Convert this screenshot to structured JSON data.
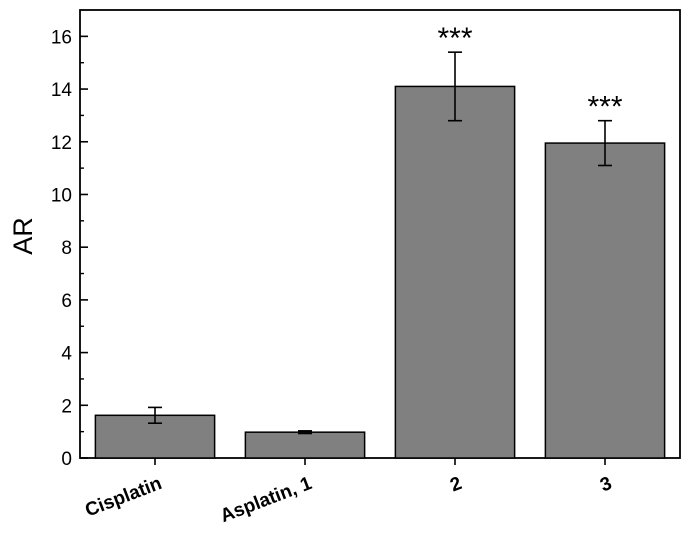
{
  "chart_data": {
    "type": "bar",
    "title": "",
    "xlabel": "",
    "ylabel": "AR",
    "ylim": [
      0,
      17
    ],
    "yticks": [
      "0",
      "2",
      "4",
      "6",
      "8",
      "10",
      "12",
      "14",
      "16"
    ],
    "categories": [
      "Cisplatin",
      "Asplatin, 1",
      "2",
      "3"
    ],
    "values": [
      1.62,
      0.98,
      14.1,
      11.95
    ],
    "errors": [
      0.3,
      0.05,
      1.3,
      0.85
    ],
    "annotations": [
      "",
      "",
      "***",
      "***"
    ],
    "grid": false,
    "legend": "none",
    "colors": {
      "bar": "#808080",
      "edge": "#000000"
    }
  }
}
